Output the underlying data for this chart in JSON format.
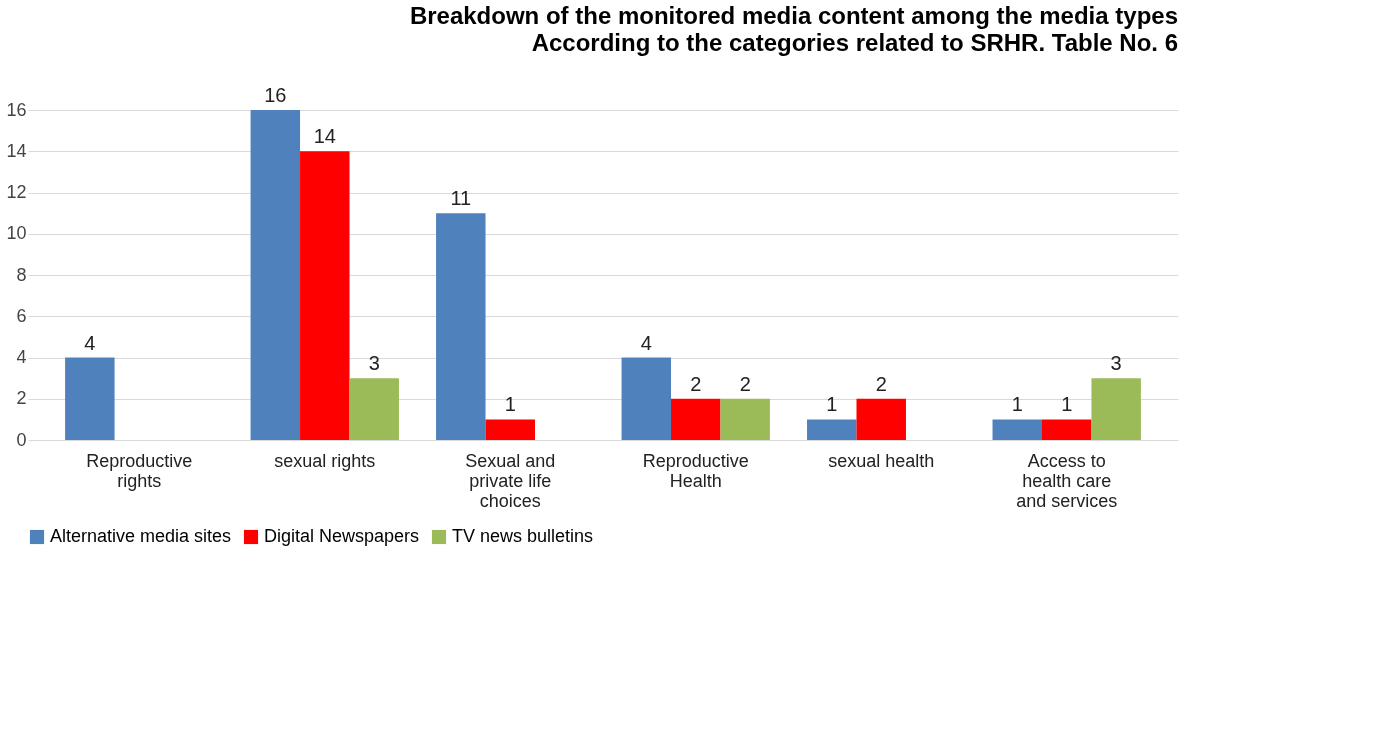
{
  "chart_data": {
    "type": "bar",
    "title": "Breakdown of the monitored media content among the media types",
    "subtitle": "According to the categories related to SRHR. Table No. 6",
    "categories": [
      "Reproductive rights",
      "sexual rights",
      "Sexual and private life choices",
      "Reproductive Health",
      "sexual health",
      "Access to health care and services"
    ],
    "series": [
      {
        "name": "Alternative media sites",
        "color": "#4f81bd",
        "values": [
          4,
          16,
          11,
          4,
          1,
          1
        ]
      },
      {
        "name": "Digital Newspapers",
        "color": "#ff0000",
        "values": [
          null,
          14,
          1,
          2,
          2,
          1
        ]
      },
      {
        "name": "TV news bulletins",
        "color": "#9bbb59",
        "values": [
          null,
          3,
          null,
          2,
          null,
          3
        ]
      }
    ],
    "ylim": [
      0,
      16
    ],
    "yticks": [
      0,
      2,
      4,
      6,
      8,
      10,
      12,
      14,
      16
    ],
    "grid": "y",
    "legend": "bottom",
    "data_labels": true
  }
}
